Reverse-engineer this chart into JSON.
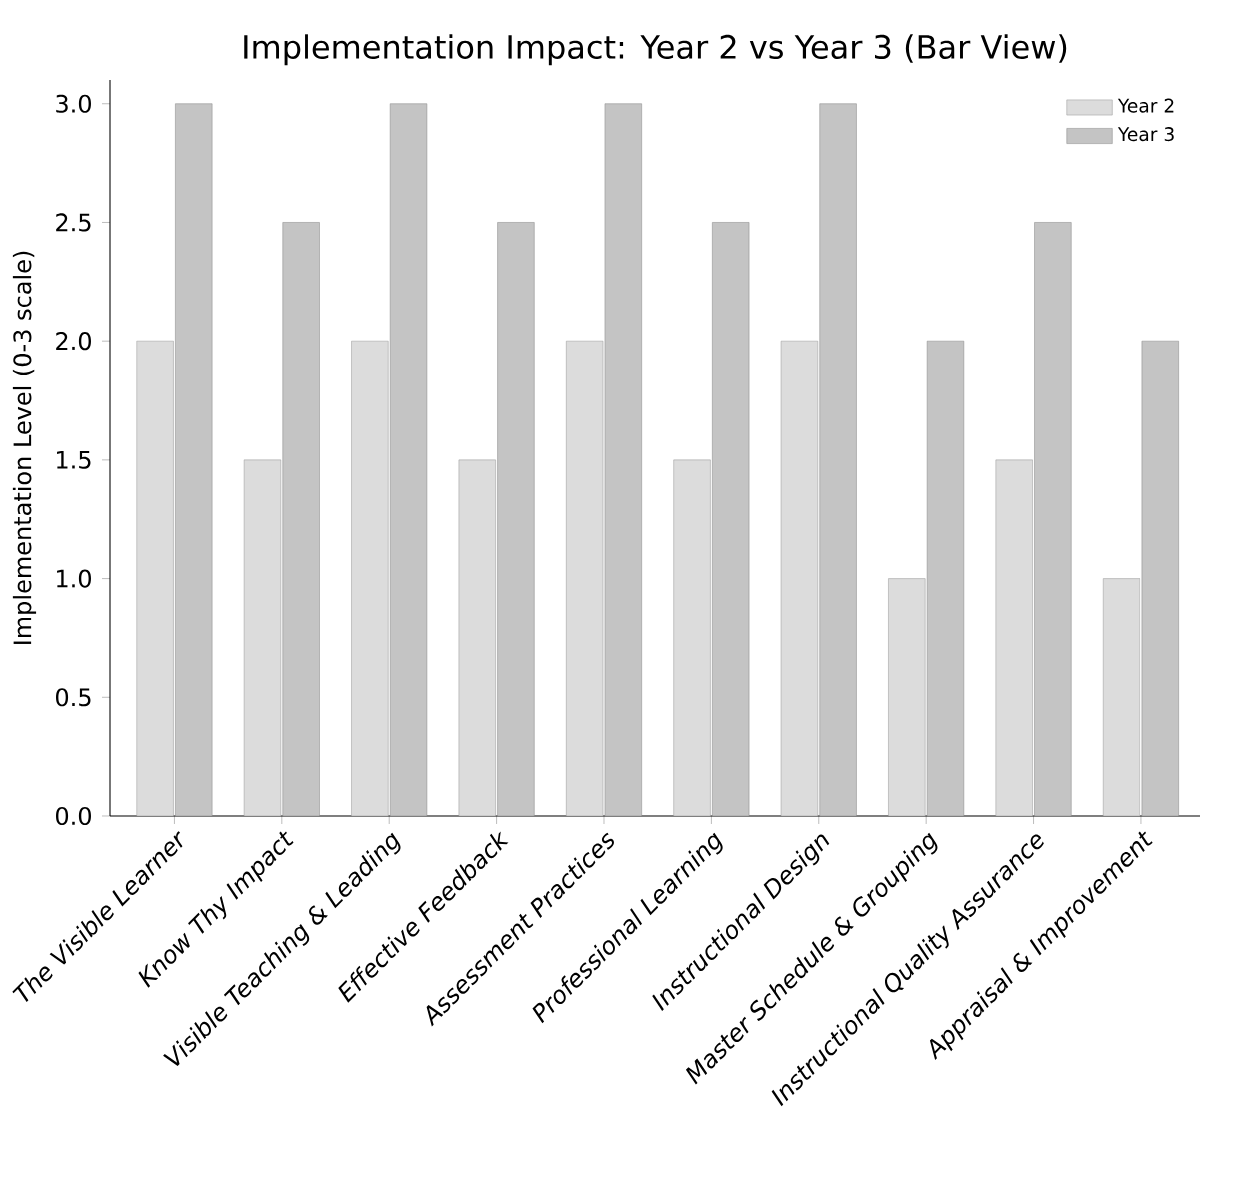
{
  "chart_data": {
    "type": "bar",
    "title": "Implementation Impact: Year 2 vs Year 3 (Bar View)",
    "ylabel": "Implementation Level (0-3 scale)",
    "categories": [
      "The Visible Learner",
      "Know Thy Impact",
      "Visible Teaching & Leading",
      "Effective Feedback",
      "Assessment Practices",
      "Professional Learning",
      "Instructional Design",
      "Master Schedule & Grouping",
      "Instructional Quality Assurance",
      "Appraisal & Improvement"
    ],
    "series": [
      {
        "name": "Year 2",
        "color": "#dcdcdc",
        "values": [
          2,
          1.5,
          2,
          1.5,
          2,
          1.5,
          2,
          1,
          1.5,
          1
        ]
      },
      {
        "name": "Year 3",
        "color": "#c4c4c4",
        "values": [
          3,
          2.5,
          3,
          2.5,
          3,
          2.5,
          3,
          2,
          2.5,
          2
        ]
      }
    ],
    "ylim": [
      0,
      3.1
    ],
    "yticks": [
      {
        "value": 0,
        "label": "0.0"
      },
      {
        "value": 0.5,
        "label": "0.5"
      },
      {
        "value": 1,
        "label": "1.0"
      },
      {
        "value": 1.5,
        "label": "1.5"
      },
      {
        "value": 2,
        "label": "2.0"
      },
      {
        "value": 2.5,
        "label": "2.5"
      },
      {
        "value": 3,
        "label": "3.0"
      }
    ],
    "legend": "top right",
    "grid": false
  }
}
